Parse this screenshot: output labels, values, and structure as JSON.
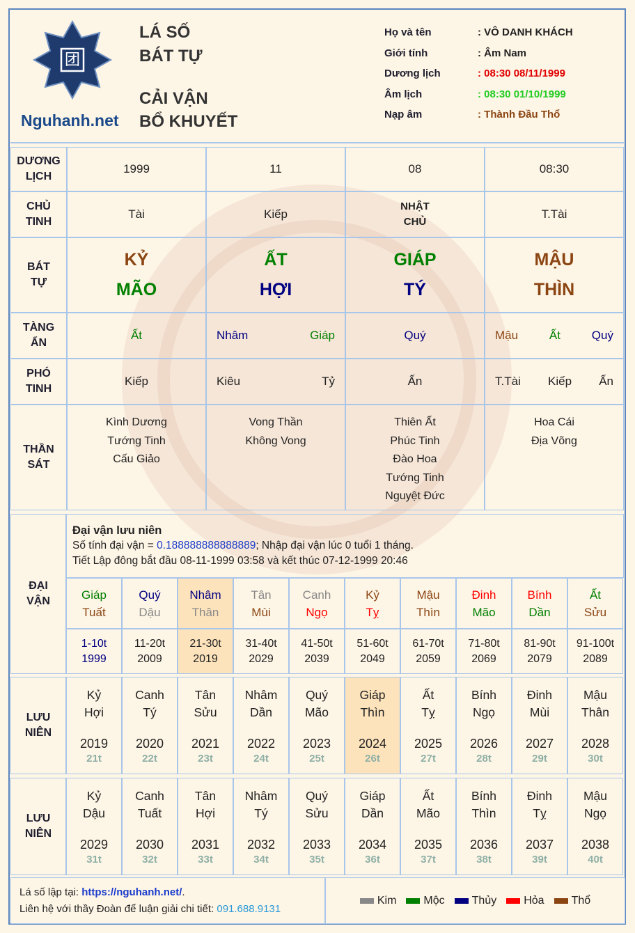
{
  "header": {
    "logo_glyph": "团",
    "site": "Nguhanh.net",
    "title": [
      "LÁ SỐ",
      "BÁT TỰ",
      "CẢI VẬN",
      "BỔ KHUYẾT"
    ],
    "info": [
      {
        "label": "Họ và tên",
        "value": ": VÔ DANH KHÁCH",
        "color": "#222222"
      },
      {
        "label": "Giới tính",
        "value": ": Âm Nam",
        "color": "#222222"
      },
      {
        "label": "Dương lịch",
        "value": ": 08:30 08/11/1999",
        "color": "#e00000"
      },
      {
        "label": "Âm lịch",
        "value": ": 08:30 01/10/1999",
        "color": "#22cc22"
      },
      {
        "label": "Nạp âm",
        "value": ": Thành Đầu Thổ",
        "color": "#8b4513"
      }
    ]
  },
  "pillars": {
    "rows": [
      {
        "label": [
          "DƯƠNG",
          "LỊCH"
        ],
        "style": "plain",
        "cells": [
          [
            {
              "text": "1999"
            }
          ],
          [
            {
              "text": "11"
            }
          ],
          [
            {
              "text": "08"
            }
          ],
          [
            {
              "text": "08:30"
            }
          ]
        ]
      },
      {
        "label": [
          "CHỦ",
          "TINH"
        ],
        "style": "plain",
        "cells": [
          [
            {
              "text": "Tài"
            }
          ],
          [
            {
              "text": "Kiếp"
            }
          ],
          [
            {
              "text": "NHẬT",
              "bold": true
            },
            {
              "text": "CHỦ",
              "bold": true
            }
          ],
          [
            {
              "text": "T.Tài"
            }
          ]
        ]
      },
      {
        "label": [
          "BÁT",
          "TỰ"
        ],
        "style": "big",
        "cells": [
          [
            {
              "text": "KỶ",
              "color": "#8b4513"
            },
            {
              "text": "MÃO",
              "color": "#008000"
            }
          ],
          [
            {
              "text": "ẤT",
              "color": "#008000"
            },
            {
              "text": "HỢI",
              "color": "#000080"
            }
          ],
          [
            {
              "text": "GIÁP",
              "color": "#008000"
            },
            {
              "text": "TÝ",
              "color": "#000080"
            }
          ],
          [
            {
              "text": "MẬU",
              "color": "#8b4513"
            },
            {
              "text": "THÌN",
              "color": "#8b4513"
            }
          ]
        ]
      },
      {
        "label": [
          "TÀNG",
          "ẨN"
        ],
        "style": "spread",
        "cells": [
          [
            {
              "text": "Ất",
              "color": "#008000"
            }
          ],
          [
            {
              "text": "Nhâm",
              "color": "#000080"
            },
            {
              "text": "Giáp",
              "color": "#008000"
            }
          ],
          [
            {
              "text": "Quý",
              "color": "#000080"
            }
          ],
          [
            {
              "text": "Mậu",
              "color": "#8b4513"
            },
            {
              "text": "Ất",
              "color": "#008000"
            },
            {
              "text": "Quý",
              "color": "#000080"
            }
          ]
        ]
      },
      {
        "label": [
          "PHÓ",
          "TINH"
        ],
        "style": "spread",
        "cells": [
          [
            {
              "text": "Kiếp"
            }
          ],
          [
            {
              "text": "Kiêu"
            },
            {
              "text": "Tỷ"
            }
          ],
          [
            {
              "text": "Ấn"
            }
          ],
          [
            {
              "text": "T.Tài"
            },
            {
              "text": "Kiếp"
            },
            {
              "text": "Ấn"
            }
          ]
        ]
      },
      {
        "label": [
          "THẦN",
          "SÁT"
        ],
        "style": "list",
        "cells": [
          [
            {
              "text": "Kình Dương"
            },
            {
              "text": "Tướng Tinh"
            },
            {
              "text": "Cấu Giảo"
            }
          ],
          [
            {
              "text": "Vong Thần"
            },
            {
              "text": "Không Vong"
            }
          ],
          [
            {
              "text": "Thiên Ất"
            },
            {
              "text": "Phúc Tinh"
            },
            {
              "text": "Đào Hoa"
            },
            {
              "text": "Tướng Tinh"
            },
            {
              "text": "Nguyệt Đức"
            }
          ],
          [
            {
              "text": "Hoa Cái"
            },
            {
              "text": "Địa Võng"
            }
          ]
        ]
      }
    ]
  },
  "dai_van": {
    "label": [
      "ĐẠI",
      "VẬN"
    ],
    "title": "Đại vận lưu niên",
    "line1_prefix": "Số tính đại vận = ",
    "line1_number": "0.188888888888889",
    "line1_suffix": "; Nhập đại vận lúc 0 tuổi 1 tháng.",
    "line2": "Tiết Lập đông bắt đầu 08-11-1999 03:58 và kết thúc 07-12-1999 20:46",
    "highlight": 2,
    "cycles": [
      {
        "stem": "Giáp",
        "stem_color": "#008000",
        "branch": "Tuất",
        "branch_color": "#8b4513",
        "ages": "1-10t",
        "year": "1999"
      },
      {
        "stem": "Quý",
        "stem_color": "#000080",
        "branch": "Dậu",
        "branch_color": "#888888",
        "ages": "11-20t",
        "year": "2009"
      },
      {
        "stem": "Nhâm",
        "stem_color": "#000080",
        "branch": "Thân",
        "branch_color": "#888888",
        "ages": "21-30t",
        "year": "2019"
      },
      {
        "stem": "Tân",
        "stem_color": "#888888",
        "branch": "Mùi",
        "branch_color": "#8b4513",
        "ages": "31-40t",
        "year": "2029"
      },
      {
        "stem": "Canh",
        "stem_color": "#888888",
        "branch": "Ngọ",
        "branch_color": "#ff0000",
        "ages": "41-50t",
        "year": "2039"
      },
      {
        "stem": "Kỷ",
        "stem_color": "#8b4513",
        "branch": "Tỵ",
        "branch_color": "#ff0000",
        "ages": "51-60t",
        "year": "2049"
      },
      {
        "stem": "Mậu",
        "stem_color": "#8b4513",
        "branch": "Thìn",
        "branch_color": "#8b4513",
        "ages": "61-70t",
        "year": "2059"
      },
      {
        "stem": "Đinh",
        "stem_color": "#ff0000",
        "branch": "Mão",
        "branch_color": "#008000",
        "ages": "71-80t",
        "year": "2069"
      },
      {
        "stem": "Bính",
        "stem_color": "#ff0000",
        "branch": "Dần",
        "branch_color": "#008000",
        "ages": "81-90t",
        "year": "2079"
      },
      {
        "stem": "Ất",
        "stem_color": "#008000",
        "branch": "Sửu",
        "branch_color": "#8b4513",
        "ages": "91-100t",
        "year": "2089"
      }
    ]
  },
  "luu_nien": [
    {
      "label": [
        "LƯU",
        "NIÊN"
      ],
      "highlight": 5,
      "years": [
        {
          "stem": "Kỷ",
          "branch": "Hợi",
          "year": "2019",
          "age": "21t"
        },
        {
          "stem": "Canh",
          "branch": "Tý",
          "year": "2020",
          "age": "22t"
        },
        {
          "stem": "Tân",
          "branch": "Sửu",
          "year": "2021",
          "age": "23t"
        },
        {
          "stem": "Nhâm",
          "branch": "Dần",
          "year": "2022",
          "age": "24t"
        },
        {
          "stem": "Quý",
          "branch": "Mão",
          "year": "2023",
          "age": "25t"
        },
        {
          "stem": "Giáp",
          "branch": "Thìn",
          "year": "2024",
          "age": "26t"
        },
        {
          "stem": "Ất",
          "branch": "Tỵ",
          "year": "2025",
          "age": "27t"
        },
        {
          "stem": "Bính",
          "branch": "Ngọ",
          "year": "2026",
          "age": "28t"
        },
        {
          "stem": "Đinh",
          "branch": "Mùi",
          "year": "2027",
          "age": "29t"
        },
        {
          "stem": "Mậu",
          "branch": "Thân",
          "year": "2028",
          "age": "30t"
        }
      ]
    },
    {
      "label": [
        "LƯU",
        "NIÊN"
      ],
      "highlight": null,
      "years": [
        {
          "stem": "Kỷ",
          "branch": "Dậu",
          "year": "2029",
          "age": "31t"
        },
        {
          "stem": "Canh",
          "branch": "Tuất",
          "year": "2030",
          "age": "32t"
        },
        {
          "stem": "Tân",
          "branch": "Hợi",
          "year": "2031",
          "age": "33t"
        },
        {
          "stem": "Nhâm",
          "branch": "Tý",
          "year": "2032",
          "age": "34t"
        },
        {
          "stem": "Quý",
          "branch": "Sửu",
          "year": "2033",
          "age": "35t"
        },
        {
          "stem": "Giáp",
          "branch": "Dần",
          "year": "2034",
          "age": "36t"
        },
        {
          "stem": "Ất",
          "branch": "Mão",
          "year": "2035",
          "age": "37t"
        },
        {
          "stem": "Bính",
          "branch": "Thìn",
          "year": "2036",
          "age": "38t"
        },
        {
          "stem": "Đinh",
          "branch": "Tỵ",
          "year": "2037",
          "age": "39t"
        },
        {
          "stem": "Mậu",
          "branch": "Ngọ",
          "year": "2038",
          "age": "40t"
        }
      ]
    }
  ],
  "footer": {
    "line1_prefix": "Lá số lập tại: ",
    "link": "https://nguhanh.net/",
    "line1_suffix": ".",
    "line2_prefix": "Liên hệ với thầy Đoàn để luận giải chi tiết: ",
    "phone": "091.688.9131",
    "legend": [
      {
        "name": "Kim",
        "color": "#888888"
      },
      {
        "name": "Mộc",
        "color": "#008000"
      },
      {
        "name": "Thủy",
        "color": "#000080"
      },
      {
        "name": "Hỏa",
        "color": "#ff0000"
      },
      {
        "name": "Thổ",
        "color": "#8b4513"
      }
    ]
  }
}
